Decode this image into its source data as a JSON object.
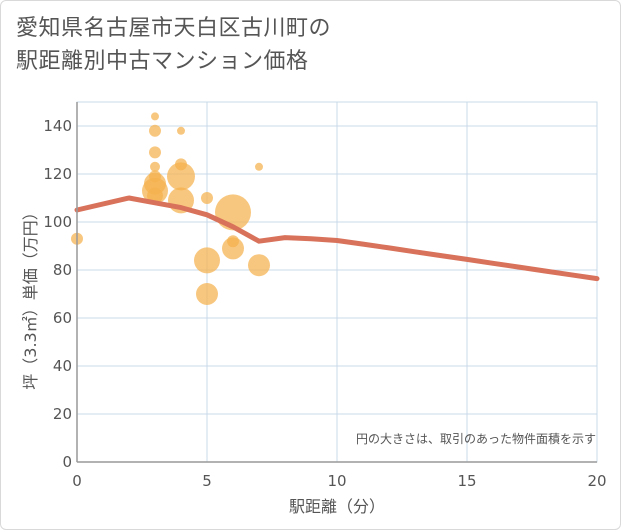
{
  "title": {
    "line1": "愛知県名古屋市天白区古川町の",
    "line2": "駅距離別中古マンション価格"
  },
  "colors": {
    "bubble": "#f5b24e",
    "line": "#d9725a",
    "grid": "#c9d9e8",
    "axis": "#999999"
  },
  "chart_data": {
    "type": "scatter",
    "xlabel": "駅距離（分）",
    "ylabel": "坪（3.3㎡）単価（万円）",
    "note": "円の大きさは、取引のあった物件面積を示す",
    "xlim": [
      0,
      20
    ],
    "ylim": [
      0,
      150
    ],
    "xticks": [
      0,
      5,
      10,
      15,
      20
    ],
    "yticks": [
      0,
      20,
      40,
      60,
      80,
      100,
      120,
      140
    ],
    "grid": true,
    "bubbles": [
      {
        "x": 0,
        "y": 93,
        "size": 6
      },
      {
        "x": 3,
        "y": 144,
        "size": 4
      },
      {
        "x": 3,
        "y": 138,
        "size": 6
      },
      {
        "x": 3,
        "y": 129,
        "size": 6
      },
      {
        "x": 3,
        "y": 123,
        "size": 5
      },
      {
        "x": 3,
        "y": 119,
        "size": 6
      },
      {
        "x": 3,
        "y": 116,
        "size": 11
      },
      {
        "x": 3,
        "y": 113,
        "size": 13
      },
      {
        "x": 3,
        "y": 111,
        "size": 8
      },
      {
        "x": 4,
        "y": 138,
        "size": 4
      },
      {
        "x": 4,
        "y": 124,
        "size": 6
      },
      {
        "x": 4,
        "y": 119,
        "size": 14
      },
      {
        "x": 4,
        "y": 109,
        "size": 13
      },
      {
        "x": 5,
        "y": 110,
        "size": 6
      },
      {
        "x": 5,
        "y": 84,
        "size": 13
      },
      {
        "x": 5,
        "y": 70,
        "size": 11
      },
      {
        "x": 6,
        "y": 104,
        "size": 18
      },
      {
        "x": 6,
        "y": 92,
        "size": 6
      },
      {
        "x": 6,
        "y": 89,
        "size": 11
      },
      {
        "x": 7,
        "y": 123,
        "size": 4
      },
      {
        "x": 7,
        "y": 82,
        "size": 11
      }
    ],
    "trend": {
      "x": [
        0,
        2,
        3,
        4,
        5,
        6,
        7,
        8,
        9,
        10,
        11,
        12,
        13,
        14,
        15,
        16,
        17,
        18,
        19,
        20
      ],
      "y": [
        105,
        110,
        108,
        106,
        103,
        98,
        92,
        93.5,
        93,
        92.3,
        90.8,
        89.2,
        87.6,
        86,
        84.4,
        82.8,
        81.2,
        79.6,
        78,
        76.4
      ]
    }
  }
}
